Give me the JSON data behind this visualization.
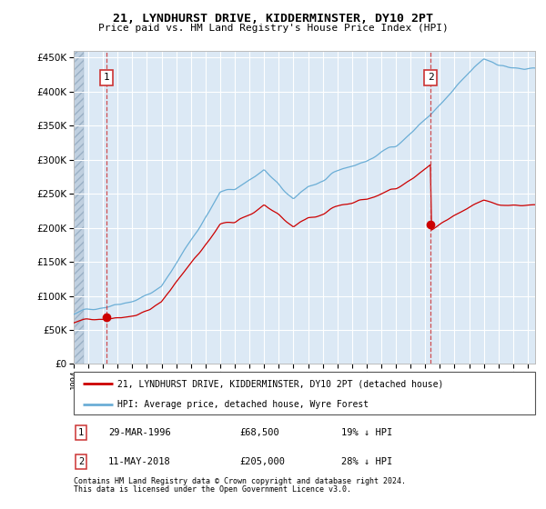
{
  "title": "21, LYNDHURST DRIVE, KIDDERMINSTER, DY10 2PT",
  "subtitle": "Price paid vs. HM Land Registry's House Price Index (HPI)",
  "sale1_year": 1996.24,
  "sale1_price": 68500,
  "sale1_label": "1",
  "sale2_year": 2018.36,
  "sale2_price": 205000,
  "sale2_label": "2",
  "ylim": [
    0,
    460000
  ],
  "yticks": [
    0,
    50000,
    100000,
    150000,
    200000,
    250000,
    300000,
    350000,
    400000,
    450000
  ],
  "xmin": 1994,
  "xmax": 2025.5,
  "legend_line1": "21, LYNDHURST DRIVE, KIDDERMINSTER, DY10 2PT (detached house)",
  "legend_line2": "HPI: Average price, detached house, Wyre Forest",
  "footnote_line1": "Contains HM Land Registry data © Crown copyright and database right 2024.",
  "footnote_line2": "This data is licensed under the Open Government Licence v3.0.",
  "table_row1_num": "1",
  "table_row1_date": "29-MAR-1996",
  "table_row1_price": "£68,500",
  "table_row1_hpi": "19% ↓ HPI",
  "table_row2_num": "2",
  "table_row2_date": "11-MAY-2018",
  "table_row2_price": "£205,000",
  "table_row2_hpi": "28% ↓ HPI",
  "plot_bg": "#dce9f5",
  "hatch_bg": "#c0d0e0",
  "grid_color": "#ffffff",
  "hpi_color": "#6baed6",
  "price_color": "#cc0000",
  "dashed_color": "#cc3333"
}
